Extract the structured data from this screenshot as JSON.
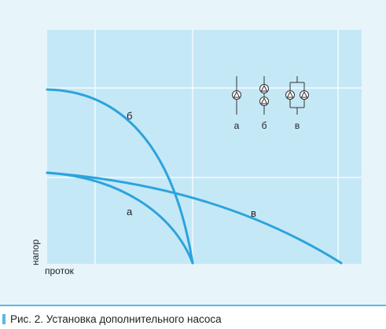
{
  "diagram": {
    "y_axis_label": "напор",
    "x_axis_label": "проток",
    "curves": {
      "a": {
        "label": "а"
      },
      "b": {
        "label": "б"
      },
      "v": {
        "label": "в"
      }
    },
    "legend": {
      "single": "а",
      "series": "б",
      "parallel": "в"
    }
  },
  "caption": {
    "text": "Рис. 2. Установка дополнительного насоса"
  },
  "colors": {
    "background": "#e7f5fb",
    "plot_area": "#c5e8f7",
    "grid": "#ffffff",
    "curve": "#2ca3dc",
    "symbol": "#333333"
  }
}
